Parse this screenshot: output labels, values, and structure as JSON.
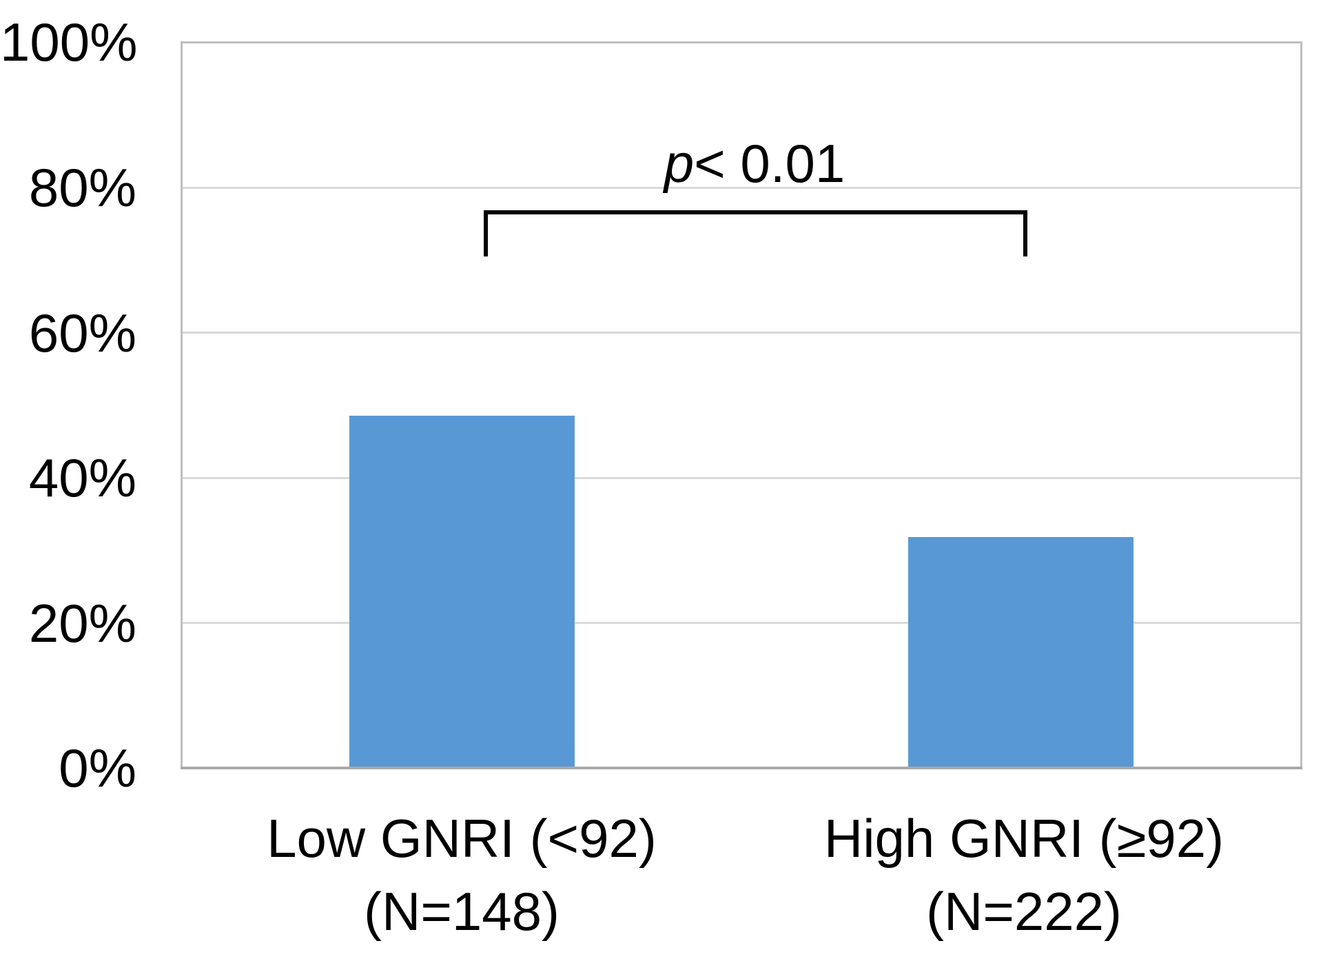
{
  "chart_data": {
    "type": "bar",
    "title": "",
    "xlabel": "",
    "ylabel": "",
    "categories": [
      {
        "label": "Low GNRI (<92)",
        "sublabel": "(N=148)",
        "n": 148
      },
      {
        "label": "High GNRI (≥92)",
        "sublabel": "(N=222)",
        "n": 222
      }
    ],
    "values": [
      48.6,
      31.9
    ],
    "value_unit": "%",
    "ylim": [
      0,
      100
    ],
    "ytick_interval": 20,
    "yticks": [
      "100%",
      "80%",
      "60%",
      "40%",
      "20%",
      "0%"
    ],
    "grid": true,
    "legend": false,
    "bar_color": "#5899d5",
    "gridline_color": "#d9d9d9",
    "axis_color": "#a9a9a9",
    "annotation": {
      "p_symbol": "p",
      "p_text": "< 0.01",
      "bracket_between": [
        0,
        1
      ]
    }
  }
}
